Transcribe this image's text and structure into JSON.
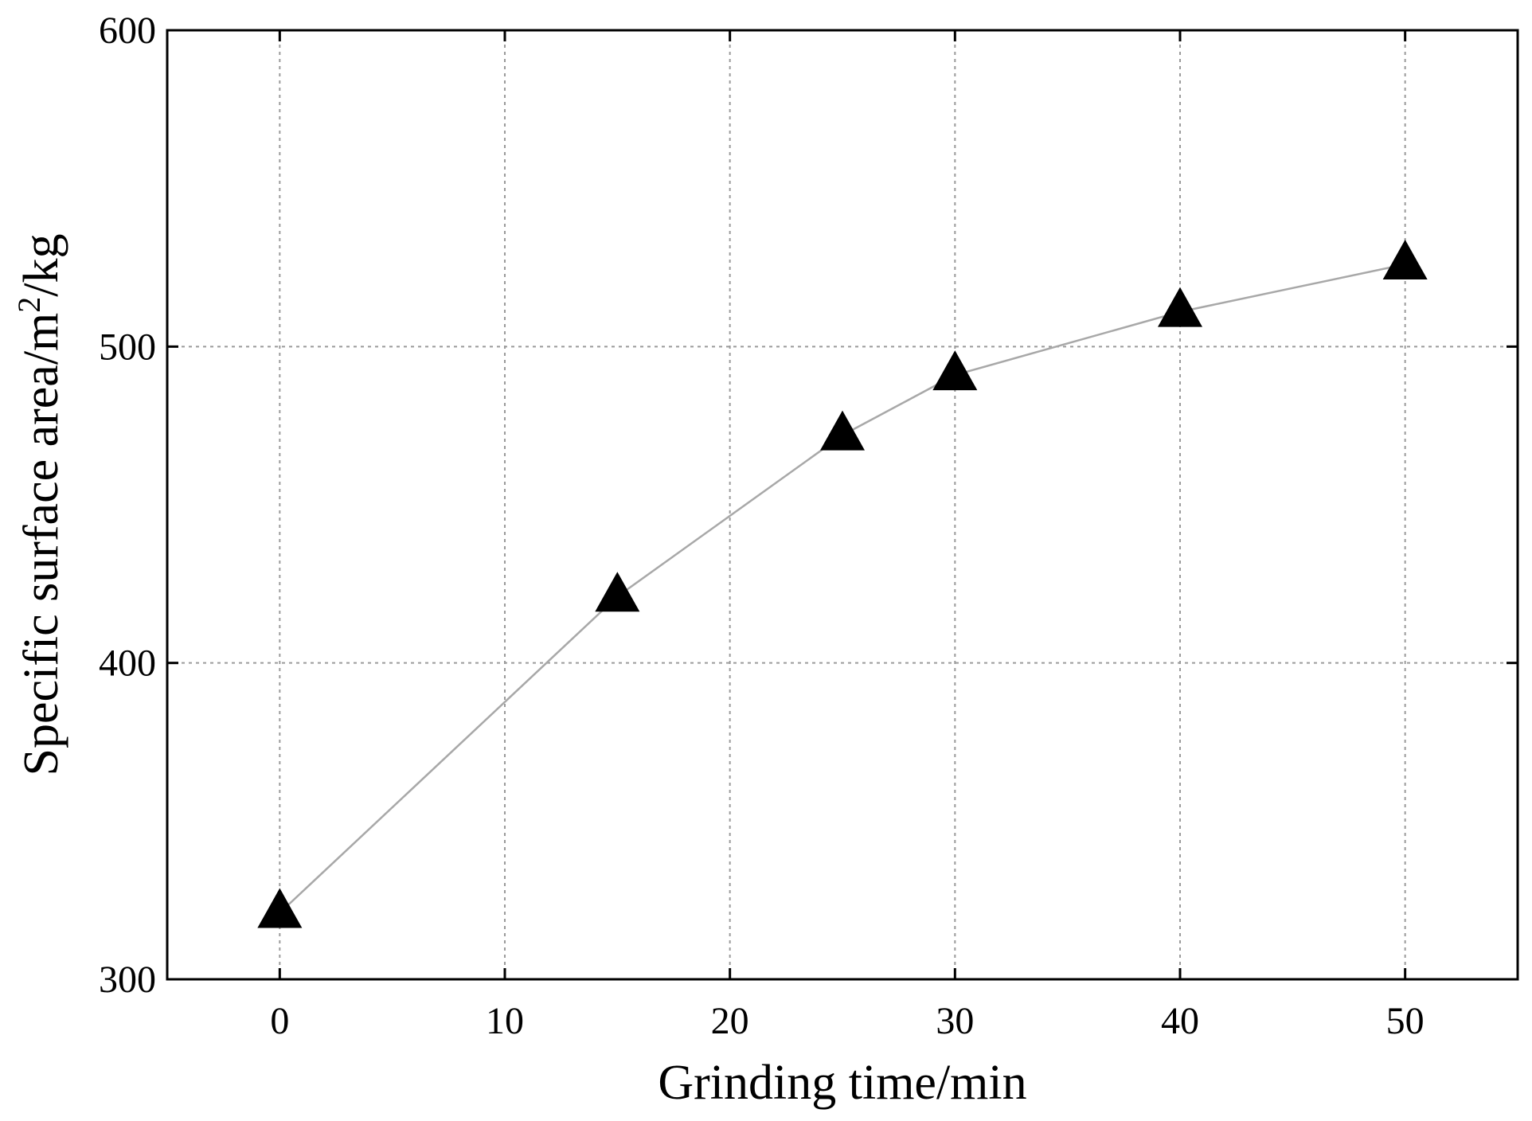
{
  "chart_data": {
    "type": "line",
    "title": "",
    "xlabel": "Grinding time/min",
    "ylabel_prefix": "Specific surface area/m",
    "ylabel_sup": "2",
    "ylabel_suffix": "/kg",
    "xlim": [
      -5,
      55
    ],
    "ylim": [
      300,
      600
    ],
    "xticks": [
      0,
      10,
      20,
      30,
      40,
      50
    ],
    "yticks": [
      300,
      400,
      500,
      600
    ],
    "grid": true,
    "marker": "triangle",
    "line_color": "#a8a8a8",
    "marker_color": "#000000",
    "series": [
      {
        "x": [
          0,
          15,
          25,
          30,
          40,
          50
        ],
        "y": [
          321,
          421,
          472,
          491,
          511,
          526
        ]
      }
    ]
  }
}
